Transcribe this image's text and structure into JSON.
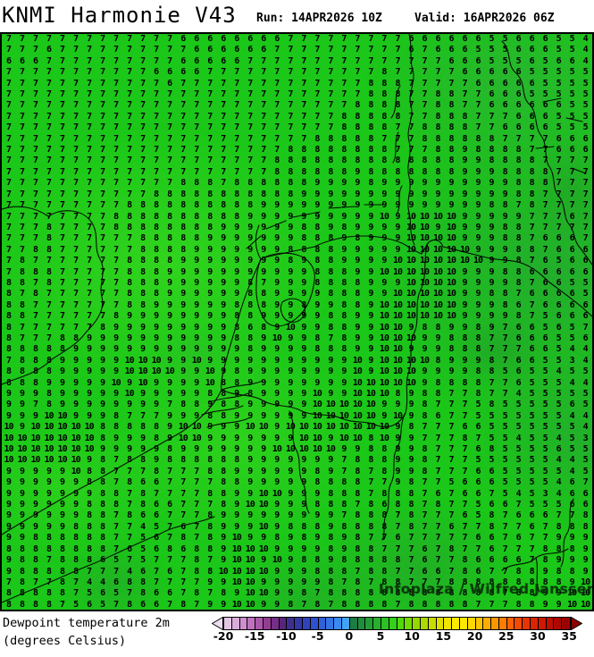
{
  "header": {
    "title": "KNMI Harmonie V43",
    "run_label": "Run: 14APR2026 10Z",
    "valid_label": "Valid: 16APR2026 06Z"
  },
  "footer": {
    "variable_name": "Dewpoint temperature 2m",
    "variable_units": "(degrees Celsius)"
  },
  "watermark": "Infoplaza / Wilfred Janssen",
  "map_grid": {
    "type": "heatmap",
    "description": "Gridded 2m dewpoint values in degrees Celsius over the Netherlands, North Sea, Belgium and NW Germany",
    "base_color": "#1bc718",
    "value_color": "#000000",
    "rows": [
      "7 7 7 7 7 7 7 7 7 7 7 7 7 6 6 6 6 6 6 6 6 7 7 7 7 7 7 7 7 7 6 6 6 6 6 6 5 5 6 6 6 5 5 4",
      "7 7 7 6 7 7 7 7 7 7 7 7 7 7 6 6 6 6 6 6 7 7 7 7 7 7 7 7 7 7 6 7 6 6 6 5 5 5 6 6 6 5 5 4",
      "6 6 6 7 7 7 7 7 7 7 7 7 7 6 6 6 6 6 7 7 7 7 7 7 7 7 7 7 7 7 7 7 7 6 6 6 5 5 5 6 5 6 6 4",
      "7 7 7 7 7 7 7 7 7 7 7 6 6 6 6 7 7 7 7 7 7 7 7 7 7 7 7 7 8 7 7 7 7 7 6 6 6 6 6 5 5 5 5 5",
      "7 7 7 7 7 7 7 7 7 7 7 7 6 7 7 7 7 7 7 7 7 7 7 7 7 7 7 8 8 8 7 7 7 7 7 6 6 6 6 6 5 5 5 5",
      "7 7 7 7 7 7 7 7 7 7 7 7 7 7 7 7 7 7 7 7 7 7 7 7 7 7 7 8 8 8 7 7 8 8 7 7 6 6 6 5 5 5 5 5",
      "7 7 7 7 7 7 7 7 7 7 7 7 7 7 7 7 7 7 7 7 7 7 7 7 7 7 8 8 8 8 7 7 8 8 7 7 6 6 6 6 6 6 5 5",
      "7 7 7 7 7 7 7 7 7 7 7 7 7 7 7 7 7 7 7 7 7 7 7 7 7 8 8 8 8 8 7 7 8 8 8 7 7 7 6 6 6 5 5 5",
      "7 7 7 7 7 7 7 7 7 7 7 7 7 7 7 7 7 7 7 7 7 7 7 7 7 8 8 8 8 7 7 8 8 8 8 7 7 6 6 6 6 5 5 5",
      "7 7 7 7 7 7 7 7 7 7 7 7 7 7 7 7 7 7 7 7 7 7 7 8 8 8 8 8 7 7 7 8 8 8 8 8 8 7 7 7 7 6 6 6",
      "7 7 7 7 7 7 7 7 7 7 7 7 7 7 7 7 7 7 7 7 7 8 8 8 8 8 8 8 8 7 7 7 8 8 9 8 8 8 8 7 7 6 6 6",
      "7 7 7 7 7 7 7 7 7 7 7 7 7 7 7 7 7 7 7 7 8 8 8 8 8 8 8 8 8 8 8 8 8 8 9 9 8 8 8 8 7 7 7 7",
      "7 7 7 7 7 7 7 7 7 7 7 7 7 7 7 7 7 7 7 7 8 8 8 8 8 8 9 8 8 8 8 8 8 8 9 9 9 8 8 8 8 7 7 7",
      "7 7 7 7 7 7 7 7 7 7 7 7 7 8 8 8 7 8 8 8 8 8 8 9 9 9 9 8 9 9 9 9 9 9 9 9 9 9 8 8 8 7 7 7",
      "7 7 7 7 7 7 7 7 7 7 7 8 8 8 8 8 8 8 8 8 8 8 9 9 9 9 9 9 9 9 9 9 9 9 9 9 9 9 8 8 7 7 7 7",
      "7 7 7 7 7 7 7 7 7 8 8 8 8 8 8 8 8 8 8 9 9 9 9 9 9 9 9 9 9 9 9 9 9 9 9 9 8 8 7 8 7 7 7 7",
      "7 7 7 7 7 7 7 7 8 8 8 8 8 8 8 8 8 8 9 9 9 9 9 9 9 9 9 9 10 9 10 10 10 10 9 9 9 9 9 7 7 7 6 7",
      "7 7 7 8 7 7 7 7 8 8 8 8 8 8 8 8 9 9 9 9 9 9 8 8 9 8 9 9 9 9 10 10 9 10 9 9 9 8 8 7 7 7 7 7",
      "7 7 7 8 7 7 7 7 7 7 8 8 8 8 8 9 9 9 9 9 9 9 8 8 8 9 8 9 9 9 10 10 10 10 9 9 9 8 8 7 6 6 6 7",
      "7 7 8 8 7 7 7 7 7 7 8 8 8 8 9 9 9 9 9 9 9 8 8 8 8 9 9 9 9 9 10 10 10 10 10 9 9 9 8 8 7 6 6 6",
      "7 8 7 7 7 7 7 7 7 8 8 8 8 9 9 9 9 9 9 9 9 8 9 8 8 9 9 9 9 10 10 10 10 10 10 10 9 9 8 7 6 5 6 6",
      "7 8 8 8 7 7 7 7 7 8 8 8 9 9 9 9 9 9 9 9 9 9 9 8 8 8 9 9 10 10 10 10 10 10 9 9 9 8 8 6 6 6 6 6",
      "8 8 7 8 7 7 7 7 7 8 8 8 9 9 9 9 9 9 8 7 9 9 9 8 8 8 8 9 9 9 10 10 10 10 9 9 9 9 8 7 6 6 5 5",
      "8 7 8 7 7 7 7 7 7 8 8 8 9 9 9 9 9 9 8 8 9 9 9 9 8 8 8 9 9 10 10 10 10 10 9 9 8 8 7 6 6 6 6 5",
      "8 8 7 7 7 7 7 7 7 8 8 9 9 9 9 9 9 8 8 8 9 9 8 9 9 8 8 9 10 10 10 10 10 10 9 9 9 8 6 7 6 6 6 6",
      "8 8 7 7 7 7 7 7 8 9 9 9 9 9 9 9 9 8 8 9 9 9 9 9 8 8 9 9 10 10 10 10 10 10 9 9 9 9 8 7 5 6 6 6",
      "8 7 7 7 7 7 7 8 9 9 9 9 9 9 9 9 9 8 6 8 9 10 9 9 8 8 9 9 10 10 9 8 8 9 9 8 9 7 6 6 5 6 5 7",
      "8 7 7 7 8 8 9 9 9 9 9 9 9 9 9 9 9 8 8 9 10 9 9 8 7 8 9 9 10 10 10 9 9 8 8 8 7 7 6 6 6 5 5 6",
      "8 8 8 8 8 9 9 9 9 9 9 9 9 9 9 9 9 9 8 9 9 9 9 8 8 8 9 9 10 10 9 9 9 8 8 8 7 7 7 6 6 5 4 4",
      "7 8 8 8 9 9 9 9 9 10 10 10 9 9 10 9 9 9 9 9 9 9 9 9 9 9 10 9 10 10 10 10 8 9 9 9 8 7 6 6 5 5 3 4",
      "8 8 8 8 9 9 9 9 9 10 10 10 10 9 9 10 9 8 9 9 9 9 9 9 9 9 10 9 10 10 10 9 9 9 9 8 8 5 6 5 5 4 5 5",
      "8 8 8 9 9 9 9 9 10 9 10 9 9 9 9 10 8 8 9 9 9 9 9 9 9 9 10 10 10 10 10 9 8 8 8 8 7 7 6 5 5 5 4 4",
      "9 9 9 8 9 9 9 9 9 10 9 9 9 9 9 8 8 9 8 9 9 9 9 10 9 9 10 10 10 8 9 8 8 7 7 8 7 7 4 5 5 5 5 5",
      "9 9 7 8 9 9 9 9 9 9 9 9 7 8 8 9 8 8 9 9 9 9 9 10 10 10 10 10 9 9 9 8 7 7 7 5 8 5 5 5 5 5 6 5",
      "9 9 9 10 10 9 9 9 8 7 7 7 9 9 9 8 8 9 9 9 9 9 9 10 10 10 10 10 9 10 9 8 6 7 7 5 5 5 5 5 5 5 4 4",
      "10 9 10 10 10 10 10 8 8 8 8 8 9 10 10 9 9 9 10 10 9 10 10 10 10 10 10 10 10 9 8 7 7 7 6 6 5 5 5 5 5 5 5 4",
      "10 10 10 10 10 10 10 8 9 9 9 8 9 10 10 9 9 9 9 9 9 9 10 10 9 10 10 8 10 9 9 7 7 7 8 7 5 5 4 5 5 4 5 3",
      "10 10 10 10 10 10 10 9 9 9 9 9 8 9 9 9 9 9 9 9 10 10 10 10 10 9 9 8 8 9 9 8 7 7 7 6 8 5 5 5 5 6 5 5",
      "10 10 10 10 10 10 9 8 7 8 8 9 8 8 8 8 8 8 9 9 9 9 9 9 9 7 8 8 8 9 9 8 7 7 7 5 5 5 5 5 5 4 4 5",
      "9 9 9 9 9 10 8 8 7 7 7 8 7 7 7 8 8 9 9 9 9 9 9 8 9 7 8 7 8 9 9 8 7 7 7 6 6 5 5 5 5 5 4 5",
      "9 9 9 9 9 9 8 8 7 8 6 6 7 7 7 7 8 8 9 9 9 9 9 8 8 8 8 7 7 9 8 7 7 5 6 6 6 5 5 5 5 4 6 7",
      "9 9 9 9 9 9 9 8 8 7 8 7 7 7 7 8 8 9 9 10 10 9 9 9 8 8 8 7 8 8 8 7 6 7 6 6 7 5 4 5 3 4 6 6",
      "9 9 9 9 9 9 8 8 8 7 8 6 6 7 7 7 8 9 10 10 9 9 9 8 8 8 7 8 6 8 8 7 8 7 7 5 6 6 7 5 5 5 6 6",
      "9 9 9 9 9 9 8 8 7 8 6 6 7 7 7 8 9 9 9 9 9 9 9 9 9 7 8 8 8 7 8 7 7 7 6 5 8 7 6 6 6 7 7 8",
      "9 9 9 9 9 8 8 8 7 7 4 5 7 6 7 8 9 9 9 10 9 8 8 8 9 8 8 8 8 7 8 7 7 6 7 7 8 7 7 6 7 8 8 8",
      "9 9 8 8 8 8 8 8 7 7 5 6 7 8 7 8 9 10 9 9 8 9 8 9 8 9 8 7 7 6 7 7 7 7 7 6 6 7 6 7 7 9 9 9",
      "8 8 8 8 8 8 8 8 7 6 5 6 8 6 8 8 9 10 10 10 9 9 9 9 8 9 8 8 7 7 7 6 7 8 7 7 6 7 7 7 8 8 8 9",
      "9 8 8 7 8 8 8 6 5 7 5 7 7 7 8 7 9 10 10 9 10 9 8 8 9 8 8 8 8 8 7 6 7 7 8 6 6 6 6 7 8 9 9 9",
      "9 8 8 8 8 8 7 7 7 4 6 7 6 7 8 8 10 10 10 10 9 9 9 8 8 8 7 8 8 7 7 6 6 7 8 6 7 7 8 8 9 8 8 9",
      "7 8 7 7 8 7 4 4 6 8 8 7 7 7 7 9 9 10 10 9 9 9 9 9 8 7 8 7 8 8 7 7 7 8 8 8 8 8 8 8 8 8 9 10",
      "8 8 8 8 8 7 5 6 5 7 8 6 6 7 8 7 8 9 10 10 9 9 8 7 8 8 8 8 8 8 8 8 8 8 8 8 8 7 8 8 9 9 10 10",
      "8 8 8 8 7 5 6 5 7 8 6 6 7 8 7 9 9 10 10 9 9 8 7 8 7 8 8 8 8 7 8 8 8 8 8 7 7 7 8 8 9 9 10 10"
    ]
  },
  "colorbar": {
    "ticks": [
      "-20",
      "-15",
      "-10",
      "-5",
      "0",
      "5",
      "10",
      "15",
      "20",
      "25",
      "30",
      "35"
    ],
    "left_arrow_color": "#eedcf2",
    "right_arrow_color": "#8b0000",
    "cell_colors": [
      "#e3c6e3",
      "#d9abd9",
      "#cd8fcd",
      "#c072c0",
      "#ab57ab",
      "#923c92",
      "#742e85",
      "#572579",
      "#3d2f8f",
      "#3236a6",
      "#3142bb",
      "#2f51cd",
      "#3161d9",
      "#3474e6",
      "#3a8af2",
      "#41a2fb",
      "#1b7c45",
      "#1e8d3d",
      "#229e35",
      "#27af2d",
      "#2dc025",
      "#35cf1c",
      "#52d80e",
      "#73da04",
      "#93d900",
      "#aeda00",
      "#c8dc00",
      "#dfdf00",
      "#f0e400",
      "#fcea00",
      "#ffe700",
      "#ffd800",
      "#ffc400",
      "#ffae00",
      "#ff9600",
      "#ff7c00",
      "#fb6100",
      "#f24a00",
      "#e63600",
      "#d92600",
      "#cc1900",
      "#bd0f00",
      "#ad0700",
      "#9c0200"
    ]
  }
}
